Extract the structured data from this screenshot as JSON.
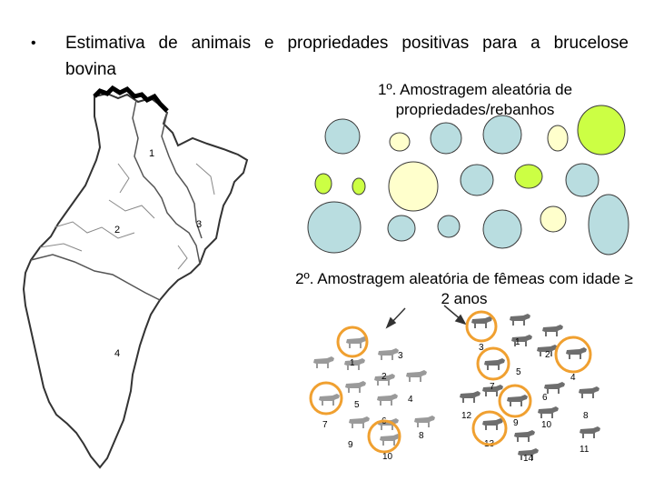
{
  "bullet": {
    "symbol": "•",
    "line1": "Estimativa de animais e propriedades positivas para a brucelose",
    "line2": "bovina"
  },
  "step1": {
    "line1": "1º. Amostragem aleatória de",
    "line2": "propriedades/rebanhos"
  },
  "step2": {
    "line1": "2º. Amostragem aleatória de fêmeas com idade ≥",
    "line2": "2 anos"
  },
  "map": {
    "region_labels": [
      "1",
      "2",
      "3",
      "4"
    ]
  },
  "herds": {
    "colors": {
      "blue": "#b9dde0",
      "yellow": "#ffffcc",
      "green": "#ccff44",
      "stroke": "#3a3a3a"
    }
  },
  "left_herd": {
    "cow_labels": [
      "1",
      "2",
      "3",
      "4",
      "5",
      "6",
      "7",
      "8",
      "9",
      "10"
    ]
  },
  "right_herd": {
    "cow_labels": [
      "1",
      "2",
      "3",
      "4",
      "5",
      "6",
      "7",
      "8",
      "9",
      "10",
      "11",
      "12",
      "13",
      "14"
    ]
  },
  "highlight_color": "#f0a030"
}
